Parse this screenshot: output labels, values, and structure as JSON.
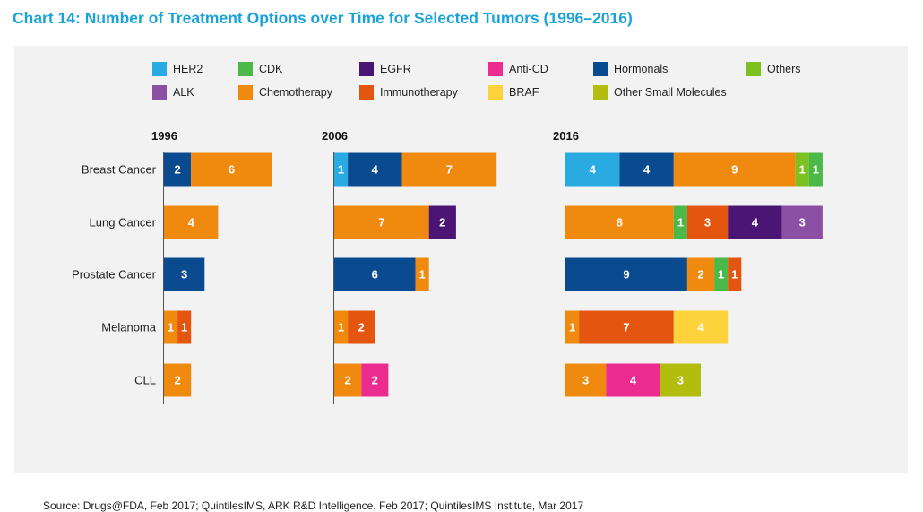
{
  "title": "Chart 14: Number of Treatment Options over Time for Selected Tumors (1996–2016)",
  "source": "Source: Drugs@FDA, Feb 2017; QuintilesIMS, ARK R&D Intelligence, Feb 2017; QuintilesIMS Institute, Mar 2017",
  "colors": {
    "title": "#1aa3d9",
    "panel_background": "#f2f2f2",
    "HER2": "#29abe2",
    "CDK": "#4cb848",
    "EGFR": "#4b1574",
    "Anti-CD": "#ec2c8e",
    "Hormonals": "#0a4a8f",
    "Others": "#7cc11f",
    "ALK": "#8b4fa3",
    "Chemotherapy": "#ef8a0e",
    "Immunotherapy": "#e4560f",
    "BRAF": "#fdd23a",
    "Other Small Molecules": "#b3bd10"
  },
  "legend": [
    {
      "label": "HER2",
      "color": "#29abe2"
    },
    {
      "label": "CDK",
      "color": "#4cb848"
    },
    {
      "label": "EGFR",
      "color": "#4b1574"
    },
    {
      "label": "Anti-CD",
      "color": "#ec2c8e"
    },
    {
      "label": "Hormonals",
      "color": "#0a4a8f"
    },
    {
      "label": "Others",
      "color": "#7cc11f"
    },
    {
      "label": "ALK",
      "color": "#8b4fa3"
    },
    {
      "label": "Chemotherapy",
      "color": "#ef8a0e"
    },
    {
      "label": "Immunotherapy",
      "color": "#e4560f"
    },
    {
      "label": "BRAF",
      "color": "#fdd23a"
    },
    {
      "label": "Other Small Molecules",
      "color": "#b3bd10"
    }
  ],
  "chart_data": {
    "type": "bar",
    "orientation": "horizontal",
    "stacked": true,
    "legend_position": "top",
    "grid": false,
    "categories": [
      "Breast Cancer",
      "Lung Cancer",
      "Prostate Cancer",
      "Melanoma",
      "CLL"
    ],
    "panels": [
      {
        "year": "1996",
        "bars": [
          [
            {
              "series": "Hormonals",
              "value": 2
            },
            {
              "series": "Chemotherapy",
              "value": 6
            }
          ],
          [
            {
              "series": "Chemotherapy",
              "value": 4
            }
          ],
          [
            {
              "series": "Hormonals",
              "value": 3
            }
          ],
          [
            {
              "series": "Chemotherapy",
              "value": 1
            },
            {
              "series": "Immunotherapy",
              "value": 1
            }
          ],
          [
            {
              "series": "Chemotherapy",
              "value": 2
            }
          ]
        ]
      },
      {
        "year": "2006",
        "bars": [
          [
            {
              "series": "HER2",
              "value": 1
            },
            {
              "series": "Hormonals",
              "value": 4
            },
            {
              "series": "Chemotherapy",
              "value": 7
            }
          ],
          [
            {
              "series": "Chemotherapy",
              "value": 7
            },
            {
              "series": "EGFR",
              "value": 2
            }
          ],
          [
            {
              "series": "Hormonals",
              "value": 6
            },
            {
              "series": "Chemotherapy",
              "value": 1
            }
          ],
          [
            {
              "series": "Chemotherapy",
              "value": 1
            },
            {
              "series": "Immunotherapy",
              "value": 2
            }
          ],
          [
            {
              "series": "Chemotherapy",
              "value": 2
            },
            {
              "series": "Anti-CD",
              "value": 2
            }
          ]
        ]
      },
      {
        "year": "2016",
        "bars": [
          [
            {
              "series": "HER2",
              "value": 4
            },
            {
              "series": "Hormonals",
              "value": 4
            },
            {
              "series": "Chemotherapy",
              "value": 9
            },
            {
              "series": "Others",
              "value": 1
            },
            {
              "series": "CDK",
              "value": 1
            }
          ],
          [
            {
              "series": "Chemotherapy",
              "value": 8
            },
            {
              "series": "CDK",
              "value": 1
            },
            {
              "series": "Immunotherapy",
              "value": 3
            },
            {
              "series": "EGFR",
              "value": 4
            },
            {
              "series": "ALK",
              "value": 3
            }
          ],
          [
            {
              "series": "Hormonals",
              "value": 9
            },
            {
              "series": "Chemotherapy",
              "value": 2
            },
            {
              "series": "CDK",
              "value": 1
            },
            {
              "series": "Immunotherapy",
              "value": 1
            }
          ],
          [
            {
              "series": "Chemotherapy",
              "value": 1
            },
            {
              "series": "Immunotherapy",
              "value": 7
            },
            {
              "series": "BRAF",
              "value": 4
            }
          ],
          [
            {
              "series": "Chemotherapy",
              "value": 3
            },
            {
              "series": "Anti-CD",
              "value": 4
            },
            {
              "series": "Other Small Molecules",
              "value": 3
            }
          ]
        ]
      }
    ]
  }
}
